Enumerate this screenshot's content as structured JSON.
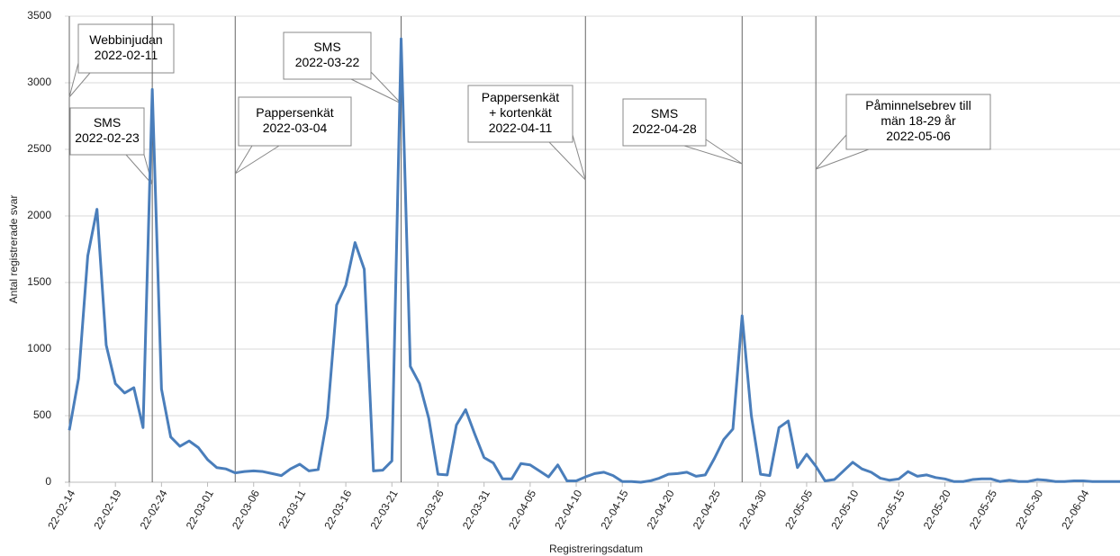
{
  "chart_data": {
    "type": "line",
    "ylabel": "Antal registrerade svar",
    "xlabel": "Registreringsdatum",
    "ylim": [
      0,
      3500
    ],
    "yticks": [
      0,
      500,
      1000,
      1500,
      2000,
      2500,
      3000,
      3500
    ],
    "grid": true,
    "categories": [
      "22-02-14",
      null,
      null,
      null,
      null,
      "22-02-19",
      null,
      null,
      null,
      null,
      "22-02-24",
      null,
      null,
      null,
      null,
      "22-03-01",
      null,
      null,
      null,
      null,
      "22-03-06",
      null,
      null,
      null,
      null,
      "22-03-11",
      null,
      null,
      null,
      null,
      "22-03-16",
      null,
      null,
      null,
      null,
      "22-03-21",
      null,
      null,
      null,
      null,
      "22-03-26",
      null,
      null,
      null,
      null,
      "22-03-31",
      null,
      null,
      null,
      null,
      "22-04-05",
      null,
      null,
      null,
      null,
      "22-04-10",
      null,
      null,
      null,
      null,
      "22-04-15",
      null,
      null,
      null,
      null,
      "22-04-20",
      null,
      null,
      null,
      null,
      "22-04-25",
      null,
      null,
      null,
      null,
      "22-04-30",
      null,
      null,
      null,
      null,
      "22-05-05",
      null,
      null,
      null,
      null,
      "22-05-10",
      null,
      null,
      null,
      null,
      "22-05-15",
      null,
      null,
      null,
      null,
      "22-05-20",
      null,
      null,
      null,
      null,
      "22-05-25",
      null,
      null,
      null,
      null,
      "22-05-30",
      null,
      null,
      null,
      null,
      "22-06-04",
      null,
      null,
      null,
      null
    ],
    "series": [
      {
        "color": "#4a7ebb",
        "values": [
          390,
          780,
          1700,
          2050,
          1030,
          740,
          670,
          710,
          410,
          2950,
          700,
          340,
          270,
          310,
          260,
          170,
          110,
          100,
          70,
          80,
          85,
          80,
          65,
          50,
          100,
          135,
          85,
          95,
          490,
          1330,
          1480,
          1800,
          1600,
          85,
          90,
          160,
          3330,
          870,
          740,
          480,
          60,
          55,
          430,
          545,
          360,
          185,
          145,
          25,
          25,
          140,
          130,
          85,
          40,
          130,
          10,
          10,
          40,
          65,
          75,
          50,
          5,
          5,
          0,
          10,
          30,
          60,
          65,
          75,
          45,
          55,
          180,
          320,
          400,
          1250,
          500,
          60,
          50,
          410,
          460,
          110,
          210,
          120,
          10,
          20,
          85,
          150,
          100,
          75,
          30,
          15,
          25,
          80,
          45,
          55,
          35,
          25,
          5,
          5,
          20,
          25,
          25,
          5,
          15,
          5,
          5,
          20,
          15,
          5,
          5,
          10,
          10,
          5,
          5,
          5,
          5
        ]
      }
    ],
    "annotations": [
      {
        "text": [
          "Webbinjudan"
        ],
        "date": "2022-02-11"
      },
      {
        "text": [
          "SMS"
        ],
        "date": "2022-02-23"
      },
      {
        "text": [
          "Pappersenkät"
        ],
        "date": "2022-03-04"
      },
      {
        "text": [
          "SMS"
        ],
        "date": "2022-03-22"
      },
      {
        "text": [
          "Pappersenkät",
          "+ kortenkät"
        ],
        "date": "2022-04-11"
      },
      {
        "text": [
          "SMS"
        ],
        "date": "2022-04-28"
      },
      {
        "text": [
          "Påminnelsebrev till",
          "män 18-29 år"
        ],
        "date": "2022-05-06"
      }
    ]
  }
}
